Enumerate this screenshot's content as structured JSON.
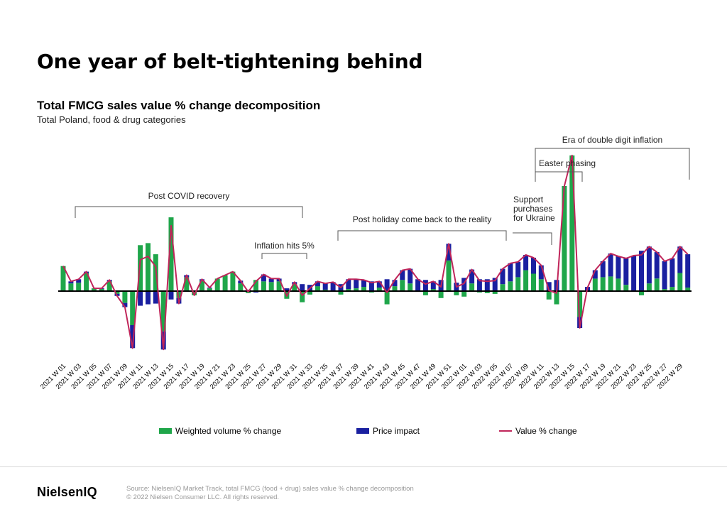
{
  "header": {
    "title": "One year of belt-tightening behind"
  },
  "chart_data": {
    "type": "bar",
    "title": "Total FMCG sales value % change decomposition",
    "subtitle": "Total Poland, food & drug categories",
    "stacked": true,
    "xlabel": "",
    "ylabel": "",
    "categories": [
      "2021 W 01",
      "2021 W 02",
      "2021 W 03",
      "2021 W 04",
      "2021 W 05",
      "2021 W 06",
      "2021 W 07",
      "2021 W 08",
      "2021 W 09",
      "2021 W 10",
      "2021 W 11",
      "2021 W 12",
      "2021 W 13",
      "2021 W 14",
      "2021 W 15",
      "2021 W 16",
      "2021 W 17",
      "2021 W 18",
      "2021 W 19",
      "2021 W 20",
      "2021 W 21",
      "2021 W 22",
      "2021 W 23",
      "2021 W 24",
      "2021 W 25",
      "2021 W 26",
      "2021 W 27",
      "2021 W 28",
      "2021 W 29",
      "2021 W 30",
      "2021 W 31",
      "2021 W 32",
      "2021 W 33",
      "2021 W 34",
      "2021 W 35",
      "2021 W 36",
      "2021 W 37",
      "2021 W 38",
      "2021 W 39",
      "2021 W 40",
      "2021 W 41",
      "2021 W 42",
      "2021 W 43",
      "2021 W 44",
      "2021 W 45",
      "2021 W 46",
      "2021 W 47",
      "2021 W 48",
      "2021 W 49",
      "2021 W 50",
      "2021 W 51",
      "2021 W 52",
      "2022 W 01",
      "2022 W 02",
      "2022 W 03",
      "2022 W 04",
      "2022 W 05",
      "2022 W 06",
      "2022 W 07",
      "2022 W 08",
      "2022 W 09",
      "2022 W 10",
      "2022 W 11",
      "2022 W 12",
      "2022 W 13",
      "2022 W 14",
      "2022 W 15",
      "2022 W 16",
      "2022 W 17",
      "2022 W 18",
      "2022 W 19",
      "2022 W 20",
      "2022 W 21",
      "2022 W 22",
      "2022 W 23",
      "2022 W 24",
      "2022 W 25",
      "2022 W 26",
      "2022 W 27",
      "2022 W 28",
      "2022 W 29",
      "2022 W 30"
    ],
    "tick_labels": [
      "2021 W 01",
      "2021 W 03",
      "2021 W 05",
      "2021 W 07",
      "2021 W 09",
      "2021 W 11",
      "2021 W 13",
      "2021 W 15",
      "2021 W 17",
      "2021 W 19",
      "2021 W 21",
      "2021 W 23",
      "2021 W 25",
      "2021 W 27",
      "2021 W 29",
      "2021 W 31",
      "2021 W 33",
      "2021 W 35",
      "2021 W 37",
      "2021 W 39",
      "2021 W 41",
      "2021 W 43",
      "2021 W 45",
      "2021 W 47",
      "2021 W 49",
      "2021 W 51",
      "2022 W 01",
      "2022 W 03",
      "2022 W 05",
      "2022 W 07",
      "2022 W 09",
      "2022 W 11",
      "2022 W 13",
      "2022 W 15",
      "2022 W 17",
      "2022 W 19",
      "2022 W 21",
      "2022 W 23",
      "2022 W 25",
      "2022 W 27",
      "2022 W 29"
    ],
    "series": [
      {
        "name": "Weighted volume % change",
        "color": "#1fa64a",
        "values": [
          36,
          11,
          12,
          26,
          4,
          3,
          14,
          -4,
          -17,
          -49,
          66,
          69,
          53,
          -58,
          106,
          -10,
          20,
          -6,
          15,
          4,
          18,
          23,
          28,
          11,
          -3,
          16,
          14,
          13,
          14,
          -11,
          10,
          -16,
          -5,
          7,
          2,
          0,
          -5,
          3,
          4,
          6,
          -2,
          5,
          -19,
          7,
          16,
          11,
          0,
          -6,
          3,
          -10,
          44,
          -6,
          -8,
          11,
          -2,
          -3,
          -4,
          10,
          14,
          20,
          30,
          25,
          17,
          -12,
          -19,
          151,
          195,
          -37,
          -1,
          18,
          20,
          21,
          18,
          9,
          1,
          -6,
          11,
          18,
          3,
          6,
          26,
          5
        ]
      },
      {
        "name": "Price impact",
        "color": "#1a20a0",
        "values": [
          0,
          3,
          5,
          2,
          0,
          1,
          2,
          -3,
          -6,
          -33,
          -21,
          -19,
          -18,
          -26,
          -12,
          -8,
          3,
          0,
          2,
          1,
          0,
          0,
          0,
          4,
          2,
          -2,
          10,
          5,
          4,
          4,
          3,
          10,
          9,
          7,
          9,
          13,
          10,
          14,
          13,
          10,
          14,
          9,
          17,
          9,
          14,
          21,
          17,
          16,
          11,
          16,
          24,
          12,
          19,
          20,
          17,
          17,
          19,
          22,
          26,
          22,
          22,
          23,
          20,
          13,
          16,
          0,
          0,
          -16,
          6,
          12,
          23,
          33,
          32,
          38,
          50,
          58,
          53,
          38,
          40,
          41,
          38,
          48
        ]
      },
      {
        "name": "Value % change",
        "color": "#c0255a",
        "type": "line",
        "values": [
          36,
          14,
          17,
          28,
          4,
          4,
          16,
          -7,
          -23,
          -82,
          45,
          50,
          35,
          -84,
          94,
          -18,
          23,
          -6,
          17,
          5,
          18,
          23,
          28,
          15,
          -1,
          14,
          24,
          18,
          18,
          -7,
          13,
          -6,
          4,
          14,
          11,
          13,
          5,
          17,
          17,
          16,
          12,
          14,
          -2,
          16,
          30,
          32,
          17,
          10,
          14,
          6,
          68,
          6,
          11,
          31,
          15,
          14,
          15,
          32,
          40,
          42,
          52,
          48,
          37,
          1,
          -3,
          151,
          195,
          -53,
          5,
          30,
          43,
          54,
          50,
          47,
          51,
          52,
          64,
          56,
          43,
          47,
          64,
          53
        ]
      }
    ],
    "ylim": [
      -100,
      200
    ],
    "annotations": [
      {
        "text": "Post COVID recovery",
        "from": "2021 W 03",
        "to": "2021 W 33"
      },
      {
        "text": "Inflation hits 5%",
        "from": "2021 W 27",
        "to": "2021 W 33"
      },
      {
        "text": "Post holiday come back to the reality",
        "from": "2021 W 37",
        "to": "2022 W 07"
      },
      {
        "lines": [
          "Support",
          "purchases",
          "for Ukraine"
        ],
        "from": "2022 W 08",
        "to": "2022 W 11"
      },
      {
        "text": "Easter phasing",
        "from": "2022 W 10",
        "to": "2022 W 16"
      },
      {
        "text": "Era of double digit inflation",
        "from": "2022 W 10",
        "to": "2022 W 30"
      }
    ],
    "grid": false,
    "legend_position": "bottom"
  },
  "legend": {
    "volume": "Weighted volume % change",
    "price": "Price impact",
    "value": "Value % change"
  },
  "colors": {
    "volume": "#1fa64a",
    "price": "#1a20a0",
    "value": "#c0255a"
  },
  "footer": {
    "brand": "NielsenIQ",
    "source": "Source: NielsenIQ Market Track, total FMCG (food + drug) sales value % change decomposition",
    "copyright": "© 2022 Nielsen Consumer LLC. All rights reserved."
  }
}
